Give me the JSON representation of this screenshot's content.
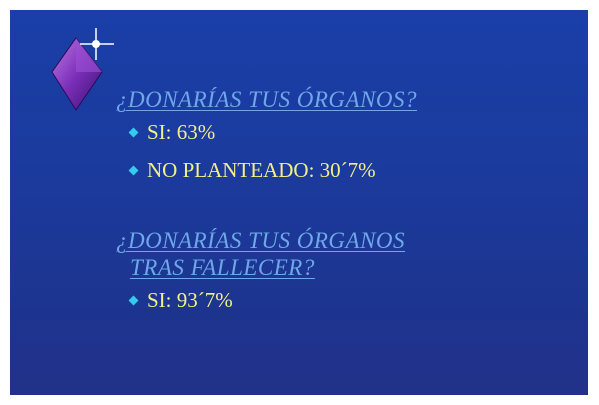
{
  "sections": [
    {
      "title_lines": [
        "¿DONARÍAS TUS ÓRGANOS?"
      ],
      "items": [
        "SI:  63%",
        "NO PLANTEADO: 30´7%"
      ]
    },
    {
      "title_lines": [
        "¿DONARÍAS TUS ÓRGANOS",
        "TRAS FALLECER?"
      ],
      "items": [
        "SI:  93´7%"
      ]
    }
  ]
}
